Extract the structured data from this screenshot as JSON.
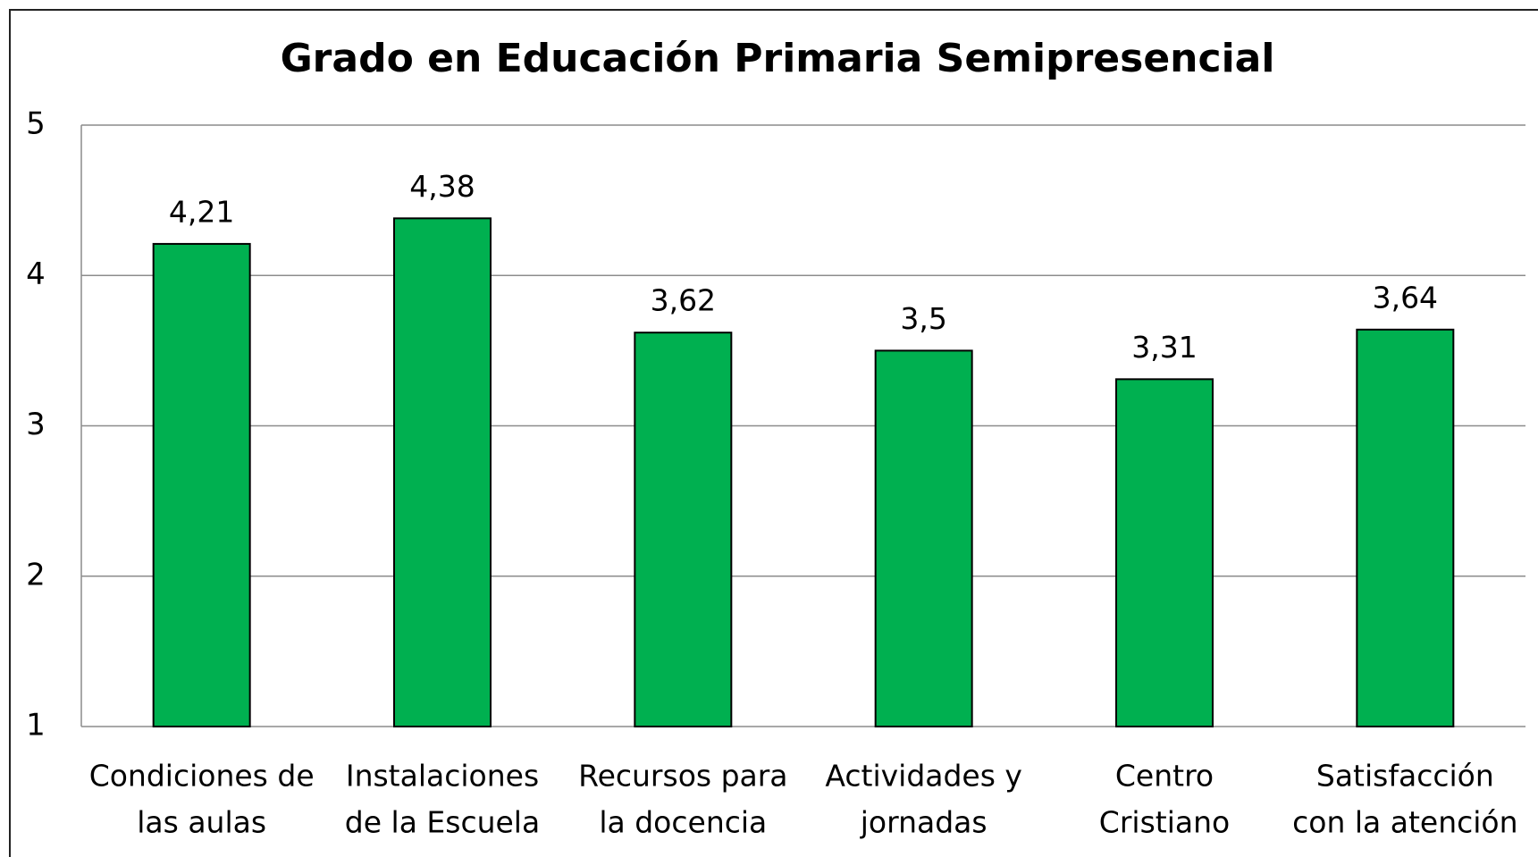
{
  "chart_data": {
    "type": "bar",
    "title": "Grado en Educación Primaria Semipresencial",
    "categories": [
      [
        "Condiciones de",
        "las aulas"
      ],
      [
        "Instalaciones",
        "de la Escuela"
      ],
      [
        "Recursos para",
        "la docencia"
      ],
      [
        "Actividades y",
        "jornadas"
      ],
      [
        "Centro",
        "Cristiano"
      ],
      [
        "Satisfacción",
        "con la atención"
      ]
    ],
    "values": [
      4.21,
      4.38,
      3.62,
      3.5,
      3.31,
      3.64
    ],
    "value_labels": [
      "4,21",
      "4,38",
      "3,62",
      "3,5",
      "3,31",
      "3,64"
    ],
    "color": "#00b050",
    "ylim": [
      1,
      5
    ],
    "yticks": [
      1,
      2,
      3,
      4,
      5
    ],
    "grid": true
  }
}
